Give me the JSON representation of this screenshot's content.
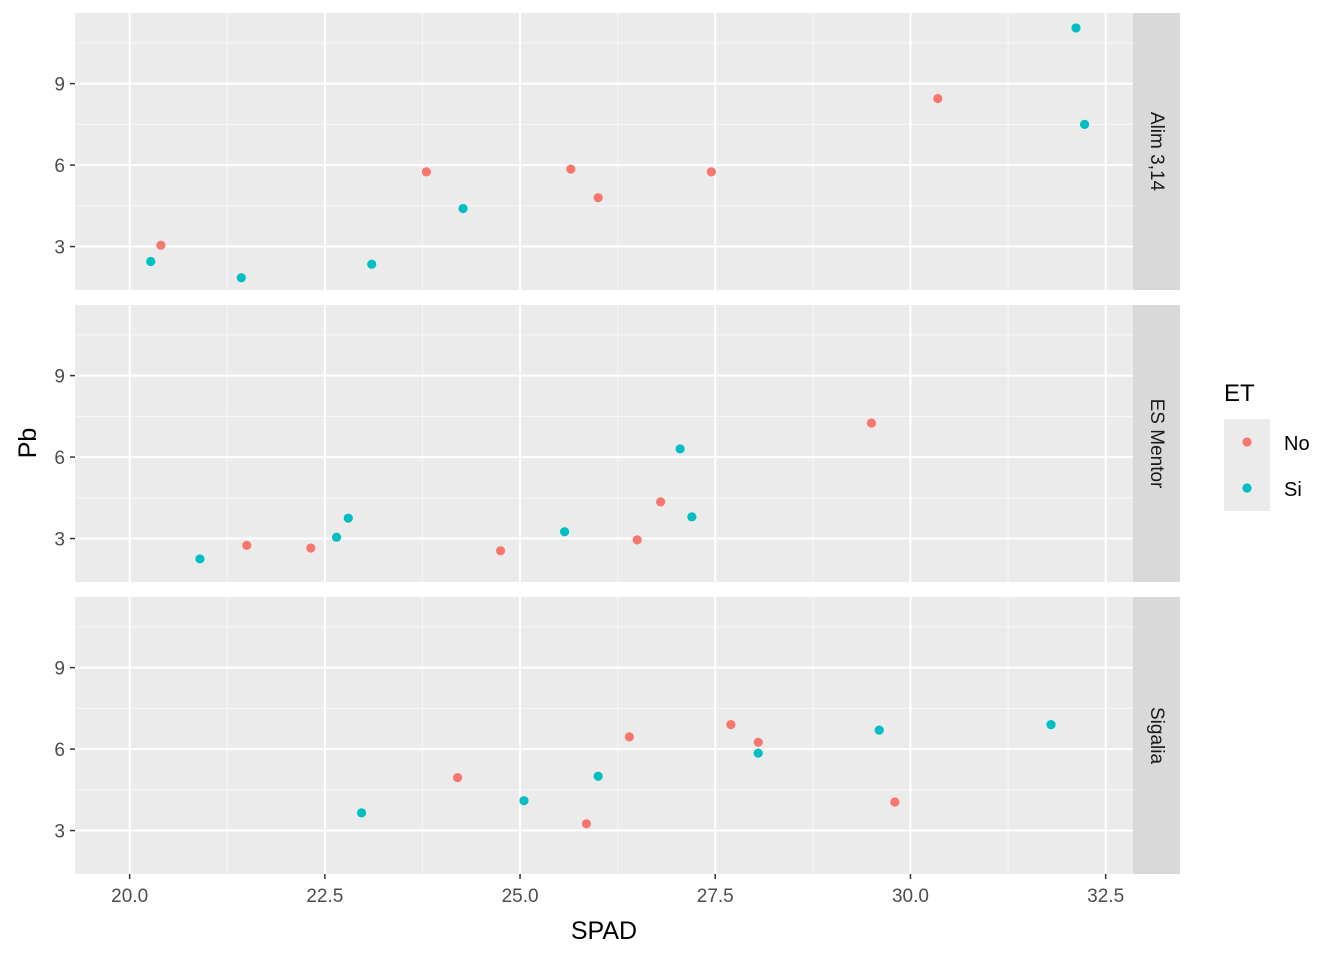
{
  "chart_data": {
    "type": "scatter",
    "xlabel": "SPAD",
    "ylabel": "Pb",
    "xlim": [
      19.3,
      32.85
    ],
    "ylim": [
      1.4,
      11.6
    ],
    "x_ticks": [
      20.0,
      22.5,
      25.0,
      27.5,
      30.0,
      32.5
    ],
    "x_tick_labels": [
      "20.0",
      "22.5",
      "25.0",
      "27.5",
      "30.0",
      "32.5"
    ],
    "y_ticks": [
      3,
      6,
      9
    ],
    "y_tick_labels": [
      "3",
      "6",
      "9"
    ],
    "grid": true,
    "facet_strip_position": "right",
    "legend": {
      "title": "ET",
      "position": "right",
      "entries": [
        {
          "label": "No",
          "color": "#F8766D"
        },
        {
          "label": "Si",
          "color": "#00BFC4"
        }
      ]
    },
    "panels": [
      {
        "label": "Alim 3,14",
        "series": [
          {
            "name": "No",
            "color": "#F8766D",
            "points": [
              [
                20.4,
                3.05
              ],
              [
                23.8,
                5.75
              ],
              [
                25.65,
                5.85
              ],
              [
                26.0,
                4.8
              ],
              [
                27.45,
                5.75
              ],
              [
                30.35,
                8.45
              ]
            ]
          },
          {
            "name": "Si",
            "color": "#00BFC4",
            "points": [
              [
                20.27,
                2.45
              ],
              [
                21.43,
                1.85
              ],
              [
                23.1,
                2.35
              ],
              [
                24.27,
                4.4
              ],
              [
                32.12,
                11.05
              ],
              [
                32.23,
                7.5
              ]
            ]
          }
        ]
      },
      {
        "label": "ES Mentor",
        "series": [
          {
            "name": "No",
            "color": "#F8766D",
            "points": [
              [
                21.5,
                2.75
              ],
              [
                22.32,
                2.65
              ],
              [
                24.75,
                2.55
              ],
              [
                26.5,
                2.95
              ],
              [
                26.8,
                4.35
              ],
              [
                29.5,
                7.25
              ]
            ]
          },
          {
            "name": "Si",
            "color": "#00BFC4",
            "points": [
              [
                20.9,
                2.25
              ],
              [
                22.65,
                3.05
              ],
              [
                22.8,
                3.75
              ],
              [
                25.57,
                3.25
              ],
              [
                27.05,
                6.3
              ],
              [
                27.2,
                3.8
              ]
            ]
          }
        ]
      },
      {
        "label": "Sigalia",
        "series": [
          {
            "name": "No",
            "color": "#F8766D",
            "points": [
              [
                24.2,
                4.95
              ],
              [
                25.85,
                3.25
              ],
              [
                26.4,
                6.45
              ],
              [
                27.7,
                6.9
              ],
              [
                28.05,
                6.25
              ],
              [
                29.8,
                4.05
              ]
            ]
          },
          {
            "name": "Si",
            "color": "#00BFC4",
            "points": [
              [
                22.97,
                3.65
              ],
              [
                25.05,
                4.1
              ],
              [
                26.0,
                5.0
              ],
              [
                28.05,
                5.85
              ],
              [
                29.6,
                6.7
              ],
              [
                31.8,
                6.9
              ]
            ]
          }
        ]
      }
    ]
  }
}
